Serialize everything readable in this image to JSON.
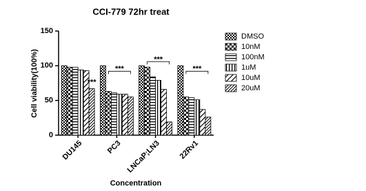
{
  "chart_data": {
    "type": "bar",
    "title": "CCI-779 72hr treat",
    "x_label": "Concentration",
    "y_label": "Cell viability(100%)",
    "categories": [
      "DU145",
      "PC3",
      "LNCaP;LN3",
      "22Rv1"
    ],
    "series": [
      {
        "name": "DMSO",
        "color": "#000000",
        "pattern": "checker-fine",
        "values": [
          100,
          100,
          100,
          100
        ]
      },
      {
        "name": "10nM",
        "color": "#000000",
        "pattern": "checker",
        "values": [
          98,
          63,
          98,
          55
        ]
      },
      {
        "name": "100nM",
        "color": "#000000",
        "pattern": "horizontal",
        "values": [
          98,
          61,
          84,
          54
        ]
      },
      {
        "name": "1uM",
        "color": "#000000",
        "pattern": "vertical",
        "values": [
          94,
          59,
          79,
          51
        ]
      },
      {
        "name": "10uM",
        "color": "#000000",
        "pattern": "diagonal",
        "values": [
          93,
          59,
          66,
          37
        ]
      },
      {
        "name": "20uM",
        "color": "#000000",
        "pattern": "diagonal-dense",
        "values": [
          67,
          55,
          19,
          26
        ]
      }
    ],
    "significance": [
      "***",
      "***",
      "***",
      "***"
    ],
    "ylim": [
      0,
      150
    ],
    "yticks": [
      0,
      50,
      100,
      150
    ]
  }
}
